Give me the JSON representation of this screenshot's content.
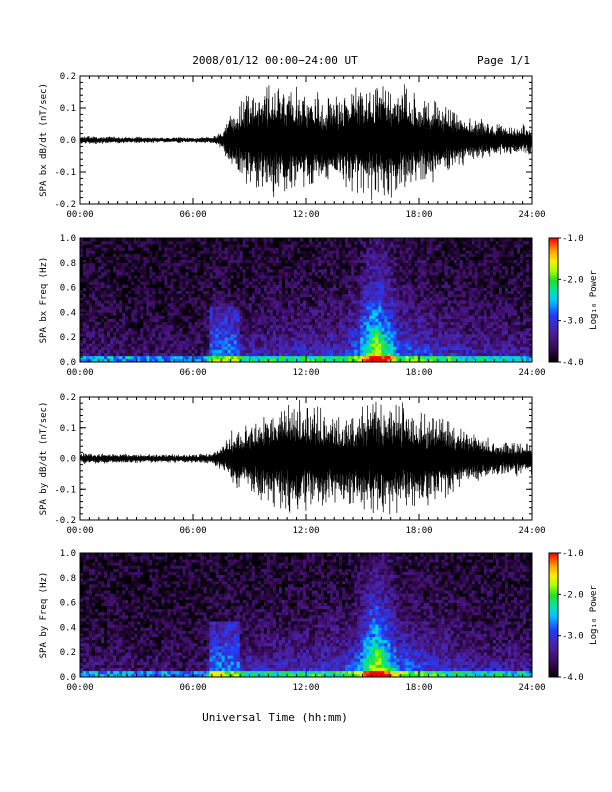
{
  "header": {
    "title": "2008/01/12  00:00−24:00 UT",
    "page": "Page 1/1"
  },
  "footer": {
    "xlabel": "Universal Time (hh:mm)"
  },
  "colors": {
    "trace": "#000000",
    "colorbar": [
      "#000000",
      "#3a0a5a",
      "#4b1f9e",
      "#1f3cff",
      "#00c8ff",
      "#00e6a0",
      "#22e022",
      "#aaff00",
      "#ffee00",
      "#ffa000",
      "#ff3000",
      "#ff0000"
    ]
  },
  "chart_data": [
    {
      "type": "line",
      "ylabel": "SPA bx dB/dt (nT/sec)",
      "xlim": [
        0,
        24
      ],
      "ylim": [
        -0.2,
        0.2
      ],
      "xticks": [
        "00:00",
        "06:00",
        "12:00",
        "18:00",
        "24:00"
      ],
      "yticks": [
        "-0.2",
        "-0.1",
        "0.0",
        "0.1",
        "0.2"
      ],
      "amplitude_envelope": {
        "x": [
          0,
          2,
          4,
          6,
          7,
          7.5,
          8,
          9,
          10,
          11,
          12,
          13,
          14,
          15,
          16,
          17,
          18,
          19,
          20,
          21,
          22,
          23,
          24
        ],
        "y": [
          0.015,
          0.012,
          0.01,
          0.01,
          0.012,
          0.03,
          0.1,
          0.16,
          0.2,
          0.2,
          0.17,
          0.15,
          0.16,
          0.2,
          0.2,
          0.19,
          0.15,
          0.13,
          0.09,
          0.07,
          0.06,
          0.05,
          0.05
        ]
      }
    },
    {
      "type": "heatmap",
      "ylabel": "SPA bx Freq (Hz)",
      "xlim": [
        0,
        24
      ],
      "ylim": [
        0,
        1
      ],
      "xticks": [
        "00:00",
        "06:00",
        "12:00",
        "18:00",
        "24:00"
      ],
      "yticks": [
        "0.0",
        "0.2",
        "0.4",
        "0.6",
        "0.8",
        "1.0"
      ],
      "colorbar": {
        "label": "Log₁₀ Power",
        "range": [
          -4,
          -1
        ],
        "ticks": [
          "-1.0",
          "-2.0",
          "-3.0",
          "-4.0"
        ]
      }
    },
    {
      "type": "line",
      "ylabel": "SPA by dB/dt (nT/sec)",
      "xlim": [
        0,
        24
      ],
      "ylim": [
        -0.2,
        0.2
      ],
      "xticks": [
        "00:00",
        "06:00",
        "12:00",
        "18:00",
        "24:00"
      ],
      "yticks": [
        "-0.2",
        "-0.1",
        "0.0",
        "0.1",
        "0.2"
      ],
      "amplitude_envelope": {
        "x": [
          0,
          2,
          4,
          6,
          7,
          7.5,
          8,
          9,
          10,
          11,
          12,
          13,
          14,
          15,
          16,
          17,
          18,
          19,
          20,
          21,
          22,
          23,
          24
        ],
        "y": [
          0.02,
          0.018,
          0.015,
          0.015,
          0.02,
          0.04,
          0.09,
          0.13,
          0.17,
          0.2,
          0.2,
          0.17,
          0.16,
          0.18,
          0.2,
          0.2,
          0.17,
          0.15,
          0.12,
          0.09,
          0.07,
          0.06,
          0.06
        ]
      }
    },
    {
      "type": "heatmap",
      "ylabel": "SPA by Freq (Hz)",
      "xlim": [
        0,
        24
      ],
      "ylim": [
        0,
        1
      ],
      "xticks": [
        "00:00",
        "06:00",
        "12:00",
        "18:00",
        "24:00"
      ],
      "yticks": [
        "0.0",
        "0.2",
        "0.4",
        "0.6",
        "0.8",
        "1.0"
      ],
      "colorbar": {
        "label": "Log₁₀ Power",
        "range": [
          -4,
          -1
        ],
        "ticks": [
          "-1.0",
          "-2.0",
          "-3.0",
          "-4.0"
        ]
      }
    }
  ]
}
